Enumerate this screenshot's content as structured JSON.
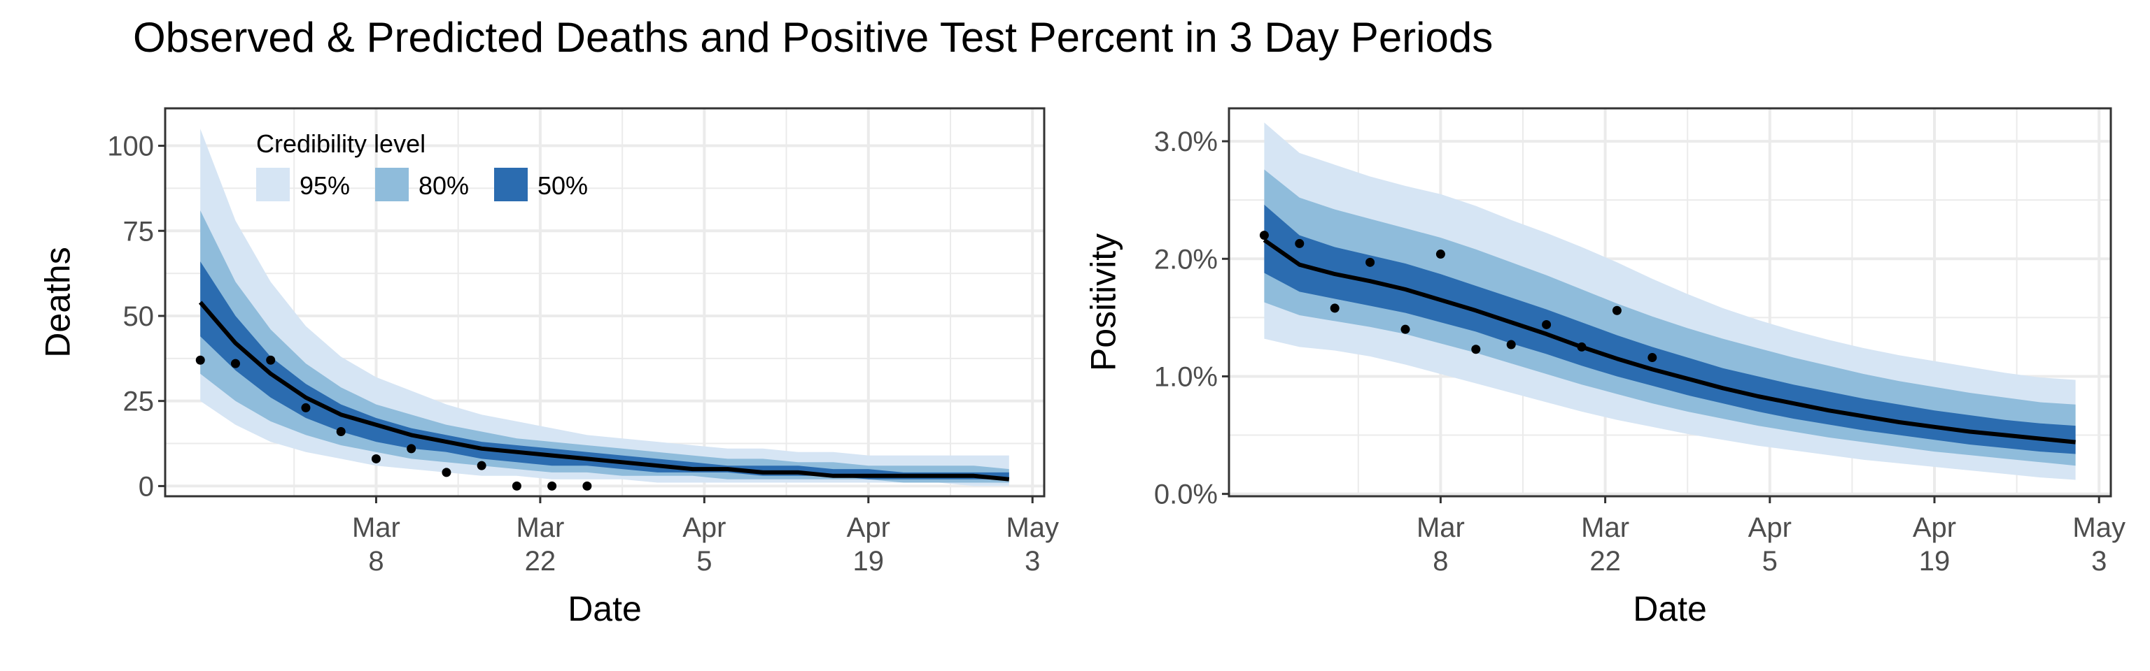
{
  "title": "Observed & Predicted Deaths and Positive Test Percent in 3 Day Periods",
  "legend": {
    "title": "Credibility level",
    "placement": "top-left inside left panel",
    "items": [
      {
        "label": "95%",
        "color": "#d6e5f4"
      },
      {
        "label": "80%",
        "color": "#8fbcdb"
      },
      {
        "label": "50%",
        "color": "#2b6cb0"
      }
    ]
  },
  "colors": {
    "median_line": "#000000",
    "points": "#000000",
    "grid": "#ebebeb",
    "panel_border": "#333333"
  },
  "chart_data": [
    {
      "type": "area",
      "xlabel": "Date",
      "ylabel": "Deaths",
      "grid": true,
      "xlim": [
        "2021-02-18",
        "2021-05-04"
      ],
      "ylim": [
        -3,
        111
      ],
      "x_ticks": [
        {
          "date": "2021-03-08",
          "label": "Mar\n8"
        },
        {
          "date": "2021-03-22",
          "label": "Mar\n22"
        },
        {
          "date": "2021-04-05",
          "label": "Apr\n5"
        },
        {
          "date": "2021-04-19",
          "label": "Apr\n19"
        },
        {
          "date": "2021-05-03",
          "label": "May\n3"
        }
      ],
      "y_ticks": [
        {
          "value": 0,
          "label": "0"
        },
        {
          "value": 25,
          "label": "25"
        },
        {
          "value": 50,
          "label": "50"
        },
        {
          "value": 75,
          "label": "75"
        },
        {
          "value": 100,
          "label": "100"
        }
      ],
      "dates": [
        "2021-02-21",
        "2021-02-24",
        "2021-02-27",
        "2021-03-02",
        "2021-03-05",
        "2021-03-08",
        "2021-03-11",
        "2021-03-14",
        "2021-03-17",
        "2021-03-20",
        "2021-03-23",
        "2021-03-26",
        "2021-03-29",
        "2021-04-01",
        "2021-04-04",
        "2021-04-07",
        "2021-04-10",
        "2021-04-13",
        "2021-04-16",
        "2021-04-19",
        "2021-04-22",
        "2021-04-25",
        "2021-04-28",
        "2021-05-01"
      ],
      "median": [
        54,
        42,
        33,
        26,
        21,
        18,
        15,
        13,
        11,
        10,
        9,
        8,
        7,
        6,
        5,
        5,
        4,
        4,
        3,
        3,
        3,
        3,
        3,
        2
      ],
      "bands": {
        "95": {
          "lower": [
            25,
            18,
            13,
            10,
            8,
            6,
            5,
            4,
            3,
            3,
            2,
            2,
            2,
            1,
            1,
            1,
            1,
            1,
            1,
            1,
            1,
            1,
            0,
            0
          ],
          "upper": [
            105,
            78,
            60,
            47,
            38,
            32,
            28,
            24,
            21,
            19,
            17,
            15,
            14,
            13,
            12,
            11,
            11,
            10,
            10,
            9,
            9,
            9,
            9,
            9
          ]
        },
        "80": {
          "lower": [
            33,
            25,
            19,
            15,
            12,
            10,
            8,
            7,
            6,
            5,
            4,
            4,
            3,
            3,
            3,
            2,
            2,
            2,
            2,
            2,
            1,
            1,
            1,
            1
          ],
          "upper": [
            81,
            60,
            46,
            36,
            29,
            24,
            21,
            18,
            16,
            14,
            13,
            12,
            11,
            10,
            9,
            8,
            8,
            7,
            7,
            6,
            6,
            6,
            6,
            5
          ]
        },
        "50": {
          "lower": [
            44,
            34,
            26,
            20,
            16,
            13,
            11,
            10,
            8,
            7,
            6,
            6,
            5,
            4,
            4,
            4,
            3,
            3,
            3,
            2,
            2,
            2,
            2,
            2
          ],
          "upper": [
            66,
            50,
            38,
            30,
            24,
            20,
            17,
            15,
            13,
            12,
            11,
            10,
            9,
            8,
            7,
            6,
            6,
            6,
            5,
            5,
            4,
            4,
            4,
            4
          ]
        }
      },
      "observed": {
        "dates": [
          "2021-02-21",
          "2021-02-24",
          "2021-02-27",
          "2021-03-02",
          "2021-03-05",
          "2021-03-08",
          "2021-03-11",
          "2021-03-14",
          "2021-03-17",
          "2021-03-20",
          "2021-03-23",
          "2021-03-26"
        ],
        "values": [
          37,
          36,
          37,
          23,
          16,
          8,
          11,
          4,
          6,
          0,
          0,
          0
        ]
      }
    },
    {
      "type": "area",
      "xlabel": "Date",
      "ylabel": "Positivity",
      "grid": true,
      "xlim": [
        "2021-02-18",
        "2021-05-04"
      ],
      "ylim": [
        -0.0002,
        0.0328
      ],
      "x_ticks": [
        {
          "date": "2021-03-08",
          "label": "Mar\n8"
        },
        {
          "date": "2021-03-22",
          "label": "Mar\n22"
        },
        {
          "date": "2021-04-05",
          "label": "Apr\n5"
        },
        {
          "date": "2021-04-19",
          "label": "Apr\n19"
        },
        {
          "date": "2021-05-03",
          "label": "May\n3"
        }
      ],
      "y_ticks": [
        {
          "value": 0.0,
          "label": "0.0%"
        },
        {
          "value": 0.01,
          "label": "1.0%"
        },
        {
          "value": 0.02,
          "label": "2.0%"
        },
        {
          "value": 0.03,
          "label": "3.0%"
        }
      ],
      "dates": [
        "2021-02-21",
        "2021-02-24",
        "2021-02-27",
        "2021-03-02",
        "2021-03-05",
        "2021-03-08",
        "2021-03-11",
        "2021-03-14",
        "2021-03-17",
        "2021-03-20",
        "2021-03-23",
        "2021-03-26",
        "2021-03-29",
        "2021-04-01",
        "2021-04-04",
        "2021-04-07",
        "2021-04-10",
        "2021-04-13",
        "2021-04-16",
        "2021-04-19",
        "2021-04-22",
        "2021-04-25",
        "2021-04-28",
        "2021-05-01"
      ],
      "median": [
        0.0216,
        0.0195,
        0.0187,
        0.0181,
        0.0174,
        0.0165,
        0.0156,
        0.0146,
        0.0136,
        0.0125,
        0.0115,
        0.0106,
        0.0098,
        0.009,
        0.0083,
        0.0077,
        0.0071,
        0.0066,
        0.0061,
        0.0057,
        0.0053,
        0.005,
        0.0047,
        0.0044
      ],
      "bands": {
        "95": {
          "lower": [
            0.0132,
            0.0125,
            0.0122,
            0.0117,
            0.011,
            0.0102,
            0.0094,
            0.0086,
            0.0078,
            0.007,
            0.0063,
            0.0057,
            0.0051,
            0.0046,
            0.0041,
            0.0037,
            0.0033,
            0.0029,
            0.0026,
            0.0023,
            0.002,
            0.0017,
            0.0014,
            0.0012
          ],
          "upper": [
            0.0316,
            0.029,
            0.028,
            0.027,
            0.0262,
            0.0255,
            0.0245,
            0.0233,
            0.0222,
            0.021,
            0.0197,
            0.0183,
            0.017,
            0.0158,
            0.0148,
            0.0139,
            0.0131,
            0.0124,
            0.0118,
            0.0113,
            0.0108,
            0.0103,
            0.0099,
            0.0097
          ]
        },
        "80": {
          "lower": [
            0.0163,
            0.0152,
            0.0147,
            0.0142,
            0.0136,
            0.0128,
            0.012,
            0.0111,
            0.0102,
            0.0093,
            0.0085,
            0.0077,
            0.007,
            0.0064,
            0.0058,
            0.0053,
            0.0048,
            0.0044,
            0.004,
            0.0036,
            0.0033,
            0.003,
            0.0027,
            0.0024
          ],
          "upper": [
            0.0276,
            0.0252,
            0.0242,
            0.0234,
            0.0226,
            0.0218,
            0.0208,
            0.0197,
            0.0186,
            0.0174,
            0.0162,
            0.0151,
            0.0141,
            0.0132,
            0.0124,
            0.0116,
            0.0109,
            0.0102,
            0.0096,
            0.0091,
            0.0086,
            0.0082,
            0.0078,
            0.0076
          ]
        },
        "50": {
          "lower": [
            0.0188,
            0.0172,
            0.0166,
            0.016,
            0.0154,
            0.0146,
            0.0138,
            0.0128,
            0.0119,
            0.0109,
            0.01,
            0.0092,
            0.0084,
            0.0077,
            0.007,
            0.0064,
            0.0059,
            0.0054,
            0.005,
            0.0046,
            0.0042,
            0.0039,
            0.0036,
            0.0034
          ],
          "upper": [
            0.0246,
            0.022,
            0.021,
            0.0203,
            0.0196,
            0.0187,
            0.0177,
            0.0167,
            0.0157,
            0.0146,
            0.0135,
            0.0125,
            0.0116,
            0.0107,
            0.01,
            0.0093,
            0.0087,
            0.0081,
            0.0076,
            0.0071,
            0.0067,
            0.0063,
            0.006,
            0.0058
          ]
        }
      },
      "observed": {
        "dates": [
          "2021-02-21",
          "2021-02-24",
          "2021-02-27",
          "2021-03-02",
          "2021-03-05",
          "2021-03-08",
          "2021-03-11",
          "2021-03-14",
          "2021-03-17",
          "2021-03-20",
          "2021-03-23",
          "2021-03-26"
        ],
        "values": [
          0.022,
          0.0213,
          0.0158,
          0.0197,
          0.014,
          0.0204,
          0.0123,
          0.0127,
          0.0144,
          0.0125,
          0.0156,
          0.0116
        ]
      }
    }
  ]
}
